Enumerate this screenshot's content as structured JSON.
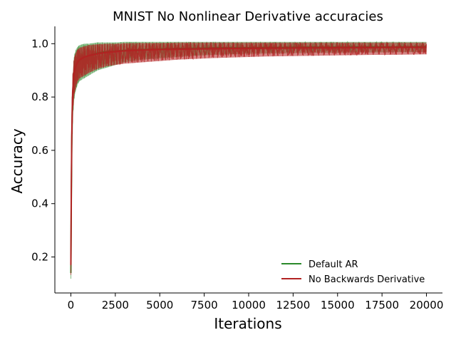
{
  "chart_data": {
    "type": "line",
    "title": "MNIST No Nonlinear Derivative accuracies",
    "xlabel": "Iterations",
    "ylabel": "Accuracy",
    "xlim": [
      -900,
      20900
    ],
    "ylim": [
      0.065,
      1.065
    ],
    "x_ticks": [
      0,
      2500,
      5000,
      7500,
      10000,
      12500,
      15000,
      17500,
      20000
    ],
    "x_tick_labels": [
      "0",
      "2500",
      "5000",
      "7500",
      "10000",
      "12500",
      "15000",
      "17500",
      "20000"
    ],
    "y_ticks": [
      0.2,
      0.4,
      0.6,
      0.8,
      1.0
    ],
    "y_tick_labels": [
      "0.2",
      "0.4",
      "0.6",
      "0.8",
      "1.0"
    ],
    "grid": false,
    "legend_position": "lower-right",
    "series": [
      {
        "name": "Default AR",
        "color": "#2a8a2a",
        "x": [
          0,
          25,
          50,
          75,
          100,
          150,
          200,
          300,
          400,
          500,
          750,
          1000,
          1500,
          2000,
          2500,
          3000,
          4000,
          5000,
          6000,
          7000,
          8000,
          9000,
          10000,
          11000,
          12000,
          13000,
          14000,
          15000,
          16000,
          17000,
          18000,
          19000,
          20000
        ],
        "y": [
          0.14,
          0.42,
          0.62,
          0.73,
          0.8,
          0.86,
          0.89,
          0.92,
          0.93,
          0.94,
          0.95,
          0.955,
          0.965,
          0.97,
          0.972,
          0.975,
          0.978,
          0.98,
          0.982,
          0.983,
          0.984,
          0.985,
          0.985,
          0.986,
          0.986,
          0.987,
          0.987,
          0.987,
          0.988,
          0.988,
          0.988,
          0.988,
          0.989
        ],
        "upper": [
          0.16,
          0.47,
          0.7,
          0.8,
          0.87,
          0.93,
          0.96,
          0.98,
          0.99,
          0.995,
          1.0,
          1.0,
          1.005,
          1.005,
          1.005,
          1.007,
          1.007,
          1.007,
          1.007,
          1.007,
          1.007,
          1.007,
          1.007,
          1.007,
          1.007,
          1.007,
          1.007,
          1.007,
          1.007,
          1.007,
          1.007,
          1.007,
          1.007
        ],
        "lower": [
          0.11,
          0.32,
          0.5,
          0.62,
          0.7,
          0.76,
          0.8,
          0.83,
          0.85,
          0.86,
          0.87,
          0.88,
          0.9,
          0.91,
          0.92,
          0.93,
          0.94,
          0.945,
          0.95,
          0.955,
          0.958,
          0.96,
          0.962,
          0.963,
          0.964,
          0.965,
          0.966,
          0.966,
          0.967,
          0.967,
          0.968,
          0.968,
          0.969
        ]
      },
      {
        "name": "No Backwards Derivative",
        "color": "#b22222",
        "x": [
          0,
          25,
          50,
          75,
          100,
          150,
          200,
          300,
          400,
          500,
          750,
          1000,
          1500,
          2000,
          2500,
          3000,
          4000,
          5000,
          6000,
          7000,
          8000,
          9000,
          10000,
          11000,
          12000,
          13000,
          14000,
          15000,
          16000,
          17000,
          18000,
          19000,
          20000
        ],
        "y": [
          0.17,
          0.45,
          0.65,
          0.75,
          0.82,
          0.87,
          0.9,
          0.92,
          0.935,
          0.94,
          0.95,
          0.955,
          0.962,
          0.967,
          0.97,
          0.973,
          0.976,
          0.978,
          0.979,
          0.98,
          0.981,
          0.982,
          0.982,
          0.983,
          0.983,
          0.984,
          0.984,
          0.985,
          0.985,
          0.985,
          0.986,
          0.986,
          0.986
        ],
        "upper": [
          0.2,
          0.5,
          0.72,
          0.82,
          0.88,
          0.93,
          0.95,
          0.97,
          0.98,
          0.985,
          0.99,
          0.995,
          0.998,
          1.0,
          1.0,
          1.002,
          1.003,
          1.003,
          1.004,
          1.004,
          1.004,
          1.004,
          1.004,
          1.004,
          1.004,
          1.004,
          1.004,
          1.004,
          1.004,
          1.004,
          1.004,
          1.004,
          1.004
        ],
        "lower": [
          0.12,
          0.35,
          0.55,
          0.65,
          0.72,
          0.78,
          0.81,
          0.84,
          0.86,
          0.87,
          0.88,
          0.89,
          0.905,
          0.915,
          0.92,
          0.925,
          0.93,
          0.935,
          0.94,
          0.943,
          0.946,
          0.948,
          0.95,
          0.952,
          0.953,
          0.954,
          0.955,
          0.956,
          0.957,
          0.958,
          0.958,
          0.959,
          0.96
        ]
      }
    ]
  }
}
